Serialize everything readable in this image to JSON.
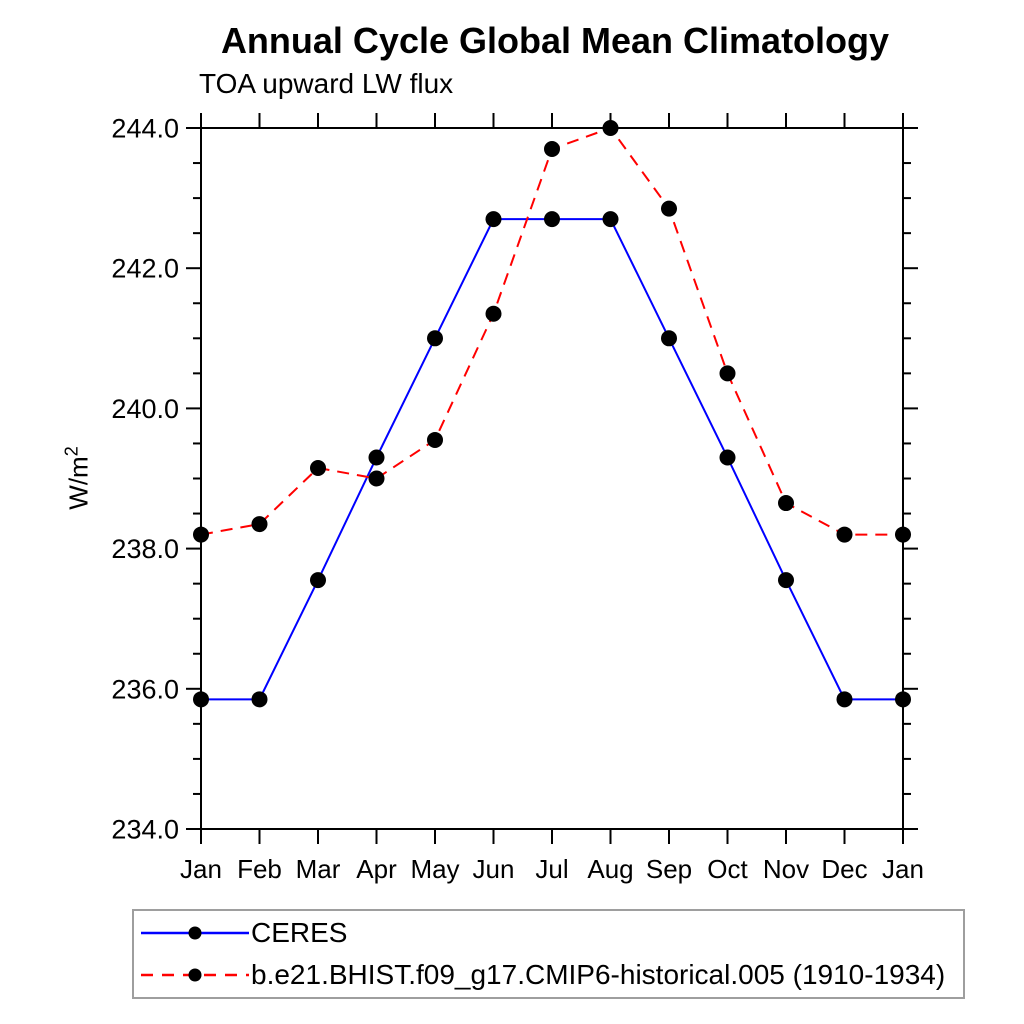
{
  "chart_data": {
    "type": "line",
    "title": "Annual Cycle Global Mean Climatology",
    "subtitle": "TOA upward LW flux",
    "ylabel": "W/m^2",
    "categories": [
      "Jan",
      "Feb",
      "Mar",
      "Apr",
      "May",
      "Jun",
      "Jul",
      "Aug",
      "Sep",
      "Oct",
      "Nov",
      "Dec",
      "Jan"
    ],
    "ylim": [
      234.0,
      244.0
    ],
    "ytick_labels": [
      "244.0",
      "242.0",
      "240.0",
      "238.0",
      "236.0",
      "234.0"
    ],
    "ytick_major_step": 2.0,
    "ytick_minor_step": 0.5,
    "grid": false,
    "legend_position": "bottom",
    "series": [
      {
        "name": "CERES",
        "line_color": "#0000ff",
        "line_style": "solid",
        "marker": "filled-circle",
        "marker_color": "#000000",
        "values": [
          235.85,
          235.85,
          237.55,
          239.3,
          241.0,
          242.7,
          242.7,
          242.7,
          241.0,
          239.3,
          237.55,
          235.85,
          235.85
        ]
      },
      {
        "name": "b.e21.BHIST.f09_g17.CMIP6-historical.005 (1910-1934)",
        "line_color": "#ff0000",
        "line_style": "dashed",
        "marker": "filled-circle",
        "marker_color": "#000000",
        "values": [
          238.2,
          238.35,
          239.15,
          239.0,
          239.55,
          241.35,
          243.7,
          244.0,
          242.85,
          240.5,
          238.65,
          238.2,
          238.2
        ]
      }
    ],
    "style": {
      "axis_color": "#000000",
      "tick_label_color": "#000000",
      "legend_border_color": "#9e9e9e"
    }
  },
  "labels": {
    "ylabel_base": "W/m",
    "ylabel_exp": "2"
  }
}
